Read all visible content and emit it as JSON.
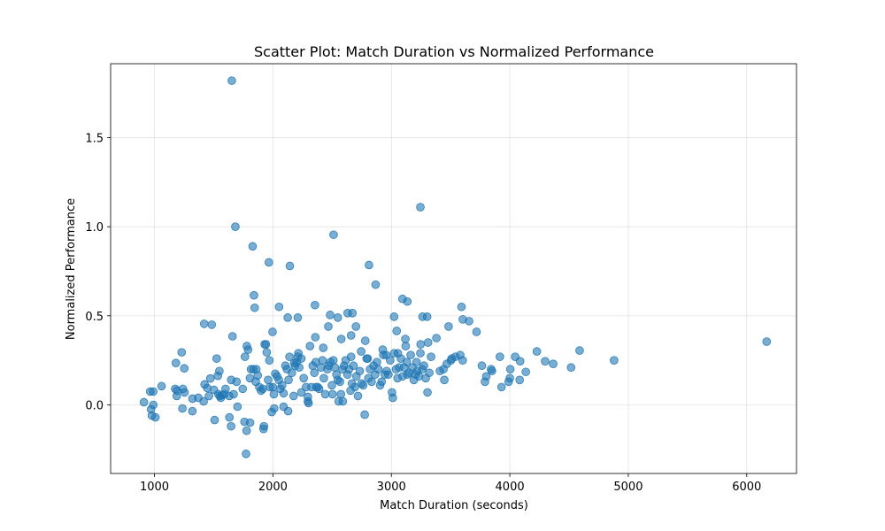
{
  "chart_data": {
    "type": "scatter",
    "title": "Scatter Plot: Match Duration vs Normalized Performance",
    "xlabel": "Match Duration (seconds)",
    "ylabel": "Normalized Performance",
    "xlim": [
      630,
      6420
    ],
    "ylim": [
      -0.385,
      1.915
    ],
    "xticks": [
      1000,
      2000,
      3000,
      4000,
      5000,
      6000
    ],
    "yticks": [
      0.0,
      0.5,
      1.0,
      1.5
    ],
    "ytick_labels": [
      "0.0",
      "0.5",
      "1.0",
      "1.5"
    ],
    "grid": true,
    "color": "#1f77b4",
    "points": [
      [
        1653,
        1.82
      ],
      [
        1683,
        1.0
      ],
      [
        1829,
        0.89
      ],
      [
        1966,
        0.8
      ],
      [
        2143,
        0.78
      ],
      [
        2512,
        0.955
      ],
      [
        3245,
        1.11
      ],
      [
        2811,
        0.785
      ],
      [
        2867,
        0.675
      ],
      [
        1840,
        0.615
      ],
      [
        1846,
        0.545
      ],
      [
        2052,
        0.55
      ],
      [
        2125,
        0.49
      ],
      [
        2210,
        0.49
      ],
      [
        2355,
        0.56
      ],
      [
        2483,
        0.505
      ],
      [
        2631,
        0.515
      ],
      [
        2671,
        0.515
      ],
      [
        3023,
        0.495
      ],
      [
        3094,
        0.595
      ],
      [
        3135,
        0.58
      ],
      [
        3263,
        0.495
      ],
      [
        3302,
        0.495
      ],
      [
        3592,
        0.55
      ],
      [
        3603,
        0.48
      ],
      [
        3656,
        0.47
      ],
      [
        3719,
        0.41
      ],
      [
        3483,
        0.44
      ],
      [
        3045,
        0.415
      ],
      [
        2548,
        0.49
      ],
      [
        1420,
        0.455
      ],
      [
        1484,
        0.45
      ],
      [
        1659,
        0.385
      ],
      [
        1790,
        0.31
      ],
      [
        1997,
        0.41
      ],
      [
        2358,
        0.38
      ],
      [
        2468,
        0.44
      ],
      [
        2577,
        0.37
      ],
      [
        2660,
        0.39
      ],
      [
        2701,
        0.44
      ],
      [
        2780,
        0.36
      ],
      [
        2927,
        0.31
      ],
      [
        3118,
        0.37
      ],
      [
        3247,
        0.34
      ],
      [
        3310,
        0.35
      ],
      [
        3380,
        0.375
      ],
      [
        3510,
        0.26
      ],
      [
        3581,
        0.28
      ],
      [
        3602,
        0.25
      ],
      [
        3764,
        0.22
      ],
      [
        3842,
        0.2
      ],
      [
        3916,
        0.27
      ],
      [
        4004,
        0.2
      ],
      [
        4045,
        0.27
      ],
      [
        4087,
        0.245
      ],
      [
        4135,
        0.185
      ],
      [
        4228,
        0.3
      ],
      [
        4298,
        0.245
      ],
      [
        4366,
        0.23
      ],
      [
        4517,
        0.21
      ],
      [
        4589,
        0.305
      ],
      [
        4880,
        0.25
      ],
      [
        6168,
        0.355
      ],
      [
        911,
        0.015
      ],
      [
        964,
        0.075
      ],
      [
        990,
        0.075
      ],
      [
        971,
        -0.025
      ],
      [
        978,
        -0.06
      ],
      [
        1008,
        -0.07
      ],
      [
        990,
        0.0
      ],
      [
        1060,
        0.105
      ],
      [
        1175,
        0.09
      ],
      [
        1181,
        0.235
      ],
      [
        1190,
        0.08
      ],
      [
        1230,
        0.295
      ],
      [
        1252,
        0.205
      ],
      [
        1240,
        0.09
      ],
      [
        1254,
        0.07
      ],
      [
        1236,
        -0.02
      ],
      [
        1188,
        0.05
      ],
      [
        1321,
        0.035
      ],
      [
        1320,
        -0.035
      ],
      [
        1423,
        0.115
      ],
      [
        1445,
        0.095
      ],
      [
        1460,
        0.05
      ],
      [
        1472,
        0.148
      ],
      [
        1502,
        0.085
      ],
      [
        1525,
        0.26
      ],
      [
        1535,
        0.163
      ],
      [
        1548,
        0.19
      ],
      [
        1551,
        0.05
      ],
      [
        1560,
        0.04
      ],
      [
        1572,
        0.055
      ],
      [
        1600,
        0.09
      ],
      [
        1631,
        0.05
      ],
      [
        1648,
        0.14
      ],
      [
        1668,
        0.06
      ],
      [
        1693,
        0.13
      ],
      [
        1701,
        -0.01
      ],
      [
        1508,
        -0.085
      ],
      [
        1633,
        -0.07
      ],
      [
        1647,
        -0.12
      ],
      [
        1760,
        -0.095
      ],
      [
        1778,
        -0.145
      ],
      [
        1773,
        -0.275
      ],
      [
        1807,
        -0.1
      ],
      [
        1924,
        -0.12
      ],
      [
        1921,
        -0.135
      ],
      [
        1990,
        -0.04
      ],
      [
        2011,
        -0.02
      ],
      [
        2090,
        -0.01
      ],
      [
        2128,
        -0.035
      ],
      [
        1764,
        0.27
      ],
      [
        1780,
        0.33
      ],
      [
        1806,
        0.15
      ],
      [
        1815,
        0.2
      ],
      [
        1835,
        0.2
      ],
      [
        1860,
        0.2
      ],
      [
        1872,
        0.165
      ],
      [
        1885,
        0.1
      ],
      [
        1900,
        0.08
      ],
      [
        1915,
        0.09
      ],
      [
        1930,
        0.34
      ],
      [
        1941,
        0.34
      ],
      [
        1948,
        0.295
      ],
      [
        1960,
        0.14
      ],
      [
        1975,
        0.1
      ],
      [
        2000,
        0.1
      ],
      [
        2008,
        0.06
      ],
      [
        2020,
        0.175
      ],
      [
        2035,
        0.16
      ],
      [
        2050,
        0.14
      ],
      [
        2063,
        0.09
      ],
      [
        2078,
        0.11
      ],
      [
        2090,
        0.065
      ],
      [
        2105,
        0.22
      ],
      [
        2118,
        0.2
      ],
      [
        2132,
        0.14
      ],
      [
        2140,
        0.27
      ],
      [
        2160,
        0.18
      ],
      [
        2175,
        0.05
      ],
      [
        2186,
        0.22
      ],
      [
        2200,
        0.24
      ],
      [
        2210,
        0.27
      ],
      [
        2215,
        0.29
      ],
      [
        2222,
        0.21
      ],
      [
        2240,
        0.07
      ],
      [
        2260,
        0.15
      ],
      [
        2280,
        0.1
      ],
      [
        2295,
        0.02
      ],
      [
        2301,
        0.01
      ],
      [
        2313,
        0.33
      ],
      [
        2325,
        0.1
      ],
      [
        2336,
        0.22
      ],
      [
        2350,
        0.18
      ],
      [
        2362,
        0.24
      ],
      [
        2378,
        0.1
      ],
      [
        2390,
        0.09
      ],
      [
        2405,
        0.21
      ],
      [
        2418,
        0.25
      ],
      [
        2430,
        0.15
      ],
      [
        2442,
        0.06
      ],
      [
        2460,
        0.2
      ],
      [
        2471,
        0.22
      ],
      [
        2485,
        0.24
      ],
      [
        2498,
        0.11
      ],
      [
        2510,
        0.25
      ],
      [
        2523,
        0.21
      ],
      [
        2536,
        0.17
      ],
      [
        2548,
        0.14
      ],
      [
        2555,
        0.02
      ],
      [
        2566,
        0.13
      ],
      [
        2574,
        0.06
      ],
      [
        2588,
        0.2
      ],
      [
        2601,
        0.22
      ],
      [
        2614,
        0.25
      ],
      [
        2630,
        0.17
      ],
      [
        2642,
        0.2
      ],
      [
        2655,
        0.08
      ],
      [
        2668,
        0.12
      ],
      [
        2680,
        0.22
      ],
      [
        2692,
        0.1
      ],
      [
        2705,
        0.16
      ],
      [
        2718,
        0.05
      ],
      [
        2733,
        0.19
      ],
      [
        2748,
        0.12
      ],
      [
        2762,
        0.11
      ],
      [
        2775,
        -0.055
      ],
      [
        2791,
        0.26
      ],
      [
        2806,
        0.15
      ],
      [
        2820,
        0.2
      ],
      [
        2833,
        0.13
      ],
      [
        2849,
        0.22
      ],
      [
        2863,
        0.17
      ],
      [
        2878,
        0.24
      ],
      [
        2890,
        0.2
      ],
      [
        2905,
        0.11
      ],
      [
        2918,
        0.13
      ],
      [
        2932,
        0.28
      ],
      [
        2945,
        0.17
      ],
      [
        2960,
        0.19
      ],
      [
        2975,
        0.17
      ],
      [
        2990,
        0.25
      ],
      [
        3005,
        0.07
      ],
      [
        3012,
        0.04
      ],
      [
        3024,
        0.29
      ],
      [
        3039,
        0.2
      ],
      [
        3052,
        0.15
      ],
      [
        3066,
        0.21
      ],
      [
        3080,
        0.26
      ],
      [
        3095,
        0.16
      ],
      [
        3108,
        0.21
      ],
      [
        3121,
        0.33
      ],
      [
        3135,
        0.17
      ],
      [
        3150,
        0.18
      ],
      [
        3163,
        0.28
      ],
      [
        3178,
        0.21
      ],
      [
        3190,
        0.14
      ],
      [
        3204,
        0.17
      ],
      [
        3218,
        0.19
      ],
      [
        3232,
        0.16
      ],
      [
        3245,
        0.29
      ],
      [
        3260,
        0.2
      ],
      [
        3275,
        0.22
      ],
      [
        3290,
        0.15
      ],
      [
        3305,
        0.07
      ],
      [
        3320,
        0.18
      ],
      [
        3335,
        0.27
      ],
      [
        3410,
        0.19
      ],
      [
        3440,
        0.2
      ],
      [
        3447,
        0.14
      ],
      [
        3468,
        0.23
      ],
      [
        3503,
        0.25
      ],
      [
        3540,
        0.27
      ],
      [
        3790,
        0.13
      ],
      [
        3801,
        0.16
      ],
      [
        3849,
        0.19
      ],
      [
        3930,
        0.1
      ],
      [
        3990,
        0.13
      ],
      [
        4000,
        0.15
      ],
      [
        4083,
        0.14
      ],
      [
        2180,
        0.235
      ],
      [
        2240,
        0.26
      ],
      [
        2295,
        0.045
      ],
      [
        2365,
        0.1
      ],
      [
        2425,
        0.32
      ],
      [
        2503,
        0.06
      ],
      [
        2590,
        0.02
      ],
      [
        2660,
        0.27
      ],
      [
        2745,
        0.3
      ],
      [
        2800,
        0.26
      ],
      [
        2955,
        0.28
      ],
      [
        3055,
        0.29
      ],
      [
        3130,
        0.24
      ],
      [
        3212,
        0.24
      ],
      [
        1970,
        0.25
      ],
      [
        1855,
        0.13
      ],
      [
        1745,
        0.09
      ],
      [
        1590,
        0.06
      ],
      [
        1540,
        0.06
      ],
      [
        1415,
        0.02
      ],
      [
        1370,
        0.04
      ]
    ]
  }
}
